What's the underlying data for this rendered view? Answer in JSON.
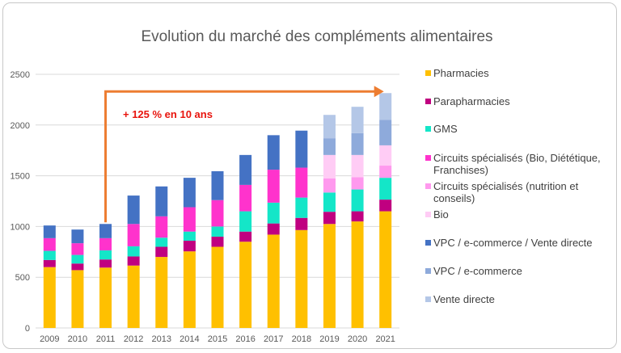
{
  "chart_data": {
    "type": "bar",
    "stacked": true,
    "title": "Evolution du marché des compléments alimentaires",
    "xlabel": "",
    "ylabel": "",
    "ylim": [
      0,
      2500
    ],
    "yticks": [
      0,
      500,
      1000,
      1500,
      2000,
      2500
    ],
    "grid": true,
    "legend_position": "right",
    "categories": [
      "2009",
      "2010",
      "2011",
      "2012",
      "2013",
      "2014",
      "2015",
      "2016",
      "2017",
      "2018",
      "2019",
      "2020",
      "2021"
    ],
    "series": [
      {
        "name": "Pharmacies",
        "color": "#ffc000",
        "values": [
          600,
          570,
          595,
          615,
          700,
          755,
          800,
          850,
          920,
          965,
          1025,
          1050,
          1150
        ]
      },
      {
        "name": "Parapharmacies",
        "color": "#c00080",
        "values": [
          70,
          65,
          80,
          90,
          100,
          105,
          100,
          100,
          110,
          120,
          120,
          100,
          115
        ]
      },
      {
        "name": "GMS",
        "color": "#14e6c8",
        "values": [
          90,
          85,
          90,
          100,
          90,
          90,
          100,
          200,
          205,
          200,
          190,
          215,
          215
        ]
      },
      {
        "name": "Circuits spécialisés (Bio, Diététique, Franchises)",
        "color": "#ff33cc",
        "values": [
          125,
          115,
          120,
          220,
          210,
          240,
          260,
          260,
          325,
          295,
          0,
          0,
          0
        ]
      },
      {
        "name": "Circuits spécialisés (nutrition et conseils)",
        "color": "#ff99ee",
        "values": [
          0,
          0,
          0,
          0,
          0,
          0,
          0,
          0,
          0,
          0,
          140,
          120,
          120
        ]
      },
      {
        "name": "Bio",
        "color": "#ffccf5",
        "values": [
          0,
          0,
          0,
          0,
          0,
          0,
          0,
          0,
          0,
          0,
          230,
          220,
          200
        ]
      },
      {
        "name": "VPC / e-commerce / Vente directe",
        "color": "#4472c4",
        "values": [
          125,
          135,
          140,
          280,
          295,
          290,
          285,
          295,
          340,
          365,
          0,
          0,
          0
        ]
      },
      {
        "name": "VPC / e-commerce",
        "color": "#8eaadb",
        "values": [
          0,
          0,
          0,
          0,
          0,
          0,
          0,
          0,
          0,
          0,
          165,
          215,
          250
        ]
      },
      {
        "name": "Vente directe",
        "color": "#b4c7e7",
        "values": [
          0,
          0,
          0,
          0,
          0,
          0,
          0,
          0,
          0,
          0,
          230,
          260,
          265
        ]
      }
    ],
    "annotations": [
      {
        "text": "+ 125 % en 10 ans",
        "color": "#e8140d",
        "from_category": "2011",
        "to_category": "2021"
      }
    ],
    "arrow_color": "#ed7d31"
  }
}
